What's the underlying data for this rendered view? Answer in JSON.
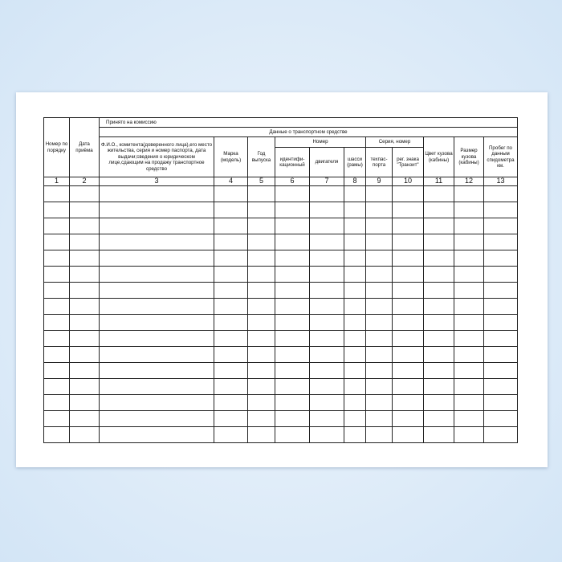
{
  "header": {
    "accepted": "Принято на комиссию",
    "vehicle_data": "Данные о транспортном средстве",
    "col1": "Номер по порядку",
    "col2": "Дата приёма",
    "col3": "Ф.И.О., комитента(доверенного лица),его место жительства, серия и номер паспорта, дата выдачи;сведения о юридическом лице,сдающим на продажу транспортное средство",
    "col4": "Марка (модель)",
    "col5": "Год выпуска",
    "number_group": "Номер",
    "col6": "идентифи-кационный",
    "col7": "двигателя",
    "col8": "шасси (рамы)",
    "series_group": "Серия, номер",
    "col9": "техпас-порта",
    "col10": "рег. знака \"Транзит\"",
    "col11": "Цвет кузова (кабины)",
    "col12": "Размер кузова (кабины)",
    "col13": "Пробег по данным спидометра км."
  },
  "column_numbers": [
    "1",
    "2",
    "3",
    "4",
    "5",
    "6",
    "7",
    "8",
    "9",
    "10",
    "11",
    "12",
    "13"
  ],
  "empty_rows": 16,
  "colors": {
    "background": "#d3e5f6",
    "paper": "#ffffff",
    "lines": "#222222"
  }
}
